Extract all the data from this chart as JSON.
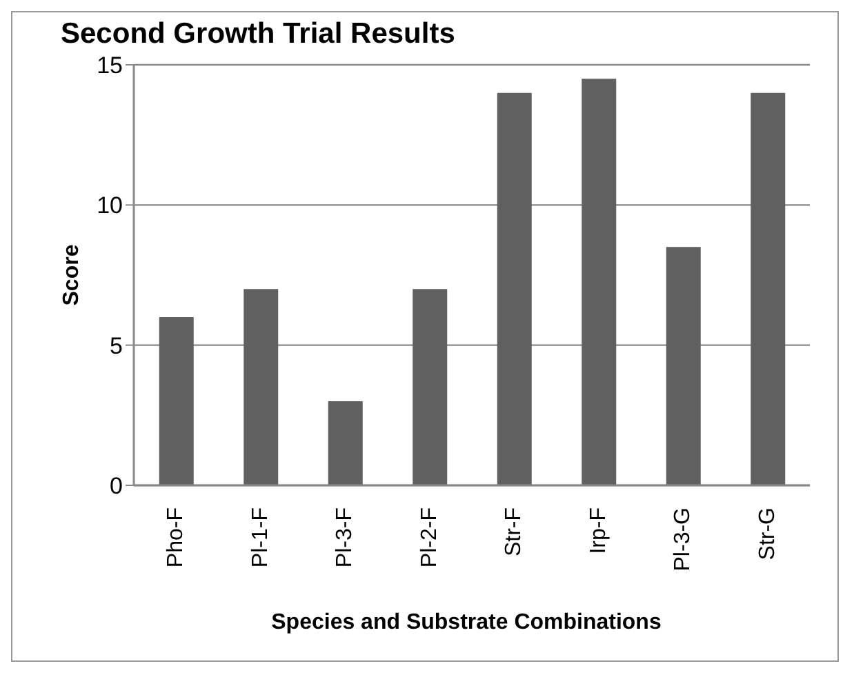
{
  "chart_data": {
    "type": "bar",
    "title": "Second Growth Trial Results",
    "xlabel": "Species and Substrate Combinations",
    "ylabel": "Score",
    "categories": [
      "Pho-F",
      "Pl-1-F",
      "Pl-3-F",
      "Pl-2-F",
      "Str-F",
      "Irp-F",
      "Pl-3-G",
      "Str-G"
    ],
    "values": [
      6,
      7,
      3,
      7,
      14,
      14.5,
      8.5,
      14
    ],
    "color": "#606060",
    "ylim": [
      0,
      15
    ],
    "yticks": [
      0,
      5,
      10,
      15
    ],
    "grid": "y"
  }
}
